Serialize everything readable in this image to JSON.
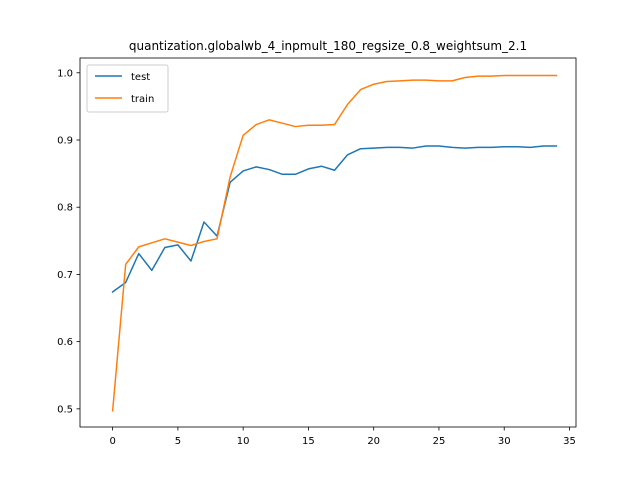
{
  "chart_data": {
    "type": "line",
    "title": "quantization.globalwb_4_inpmult_180_regsize_0.8_weightsum_2.1",
    "xlabel": "",
    "ylabel": "",
    "xlim": [
      -2.5,
      35.5
    ],
    "ylim": [
      0.473,
      1.022
    ],
    "xticks": [
      0,
      5,
      10,
      15,
      20,
      25,
      30,
      35
    ],
    "yticks": [
      0.5,
      0.6,
      0.7,
      0.8,
      0.9,
      1.0
    ],
    "ytick_labels": [
      "0.5",
      "0.6",
      "0.7",
      "0.8",
      "0.9",
      "1.0"
    ],
    "grid": false,
    "legend_position": "upper-left",
    "x": [
      0,
      1,
      2,
      3,
      4,
      5,
      6,
      7,
      8,
      9,
      10,
      11,
      12,
      13,
      14,
      15,
      16,
      17,
      18,
      19,
      20,
      21,
      22,
      23,
      24,
      25,
      26,
      27,
      28,
      29,
      30,
      31,
      32,
      33,
      34
    ],
    "series": [
      {
        "name": "test",
        "color": "#1f77b4",
        "values": [
          0.674,
          0.688,
          0.731,
          0.706,
          0.74,
          0.744,
          0.72,
          0.778,
          0.757,
          0.837,
          0.854,
          0.86,
          0.856,
          0.849,
          0.849,
          0.857,
          0.861,
          0.855,
          0.878,
          0.887,
          0.888,
          0.889,
          0.889,
          0.888,
          0.891,
          0.891,
          0.889,
          0.888,
          0.889,
          0.889,
          0.89,
          0.89,
          0.889,
          0.891,
          0.891
        ]
      },
      {
        "name": "train",
        "color": "#ff7f0e",
        "values": [
          0.497,
          0.715,
          0.741,
          0.747,
          0.753,
          0.748,
          0.743,
          0.749,
          0.753,
          0.845,
          0.907,
          0.923,
          0.93,
          0.925,
          0.92,
          0.922,
          0.922,
          0.923,
          0.953,
          0.975,
          0.983,
          0.987,
          0.988,
          0.989,
          0.989,
          0.988,
          0.988,
          0.993,
          0.995,
          0.995,
          0.996,
          0.996,
          0.996,
          0.996,
          0.996
        ]
      }
    ]
  }
}
